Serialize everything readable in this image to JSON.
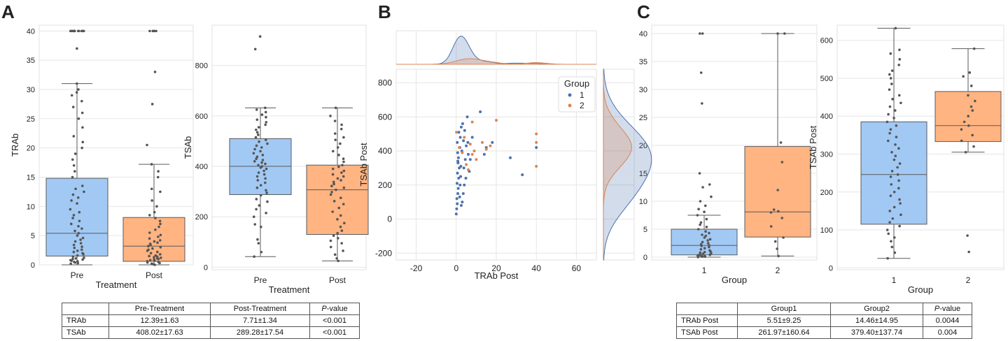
{
  "panel_letters": [
    "A",
    "B",
    "C"
  ],
  "colors": {
    "blue_box": "#a1c9f4",
    "orange_box": "#ffb482",
    "blue_dot": "#4c72b0",
    "orange_dot": "#dd8452",
    "grid": "#e6e6e6",
    "box_edge": "#5a5a5a",
    "strip_dot": "#555555"
  },
  "chart_data": [
    {
      "id": "A1",
      "type": "box",
      "xlabel": "Treatment",
      "ylabel": "TRAb",
      "categories": [
        "Pre",
        "Post"
      ],
      "ylim": [
        0,
        41
      ],
      "yticks": [
        0,
        5,
        10,
        15,
        20,
        25,
        30,
        35,
        40
      ],
      "boxes": [
        {
          "name": "Pre",
          "q1": 1.5,
          "median": 5.4,
          "q3": 14.8,
          "whisker_low": 0,
          "whisker_high": 31,
          "outliers": [
            37,
            40,
            40,
            40,
            40,
            40,
            40,
            40,
            40,
            40,
            40,
            40,
            40,
            40,
            40
          ]
        },
        {
          "name": "Post",
          "q1": 0.6,
          "median": 3.2,
          "q3": 8.1,
          "whisker_low": 0,
          "whisker_high": 17.2,
          "outliers": [
            20.5,
            27.5,
            33,
            40,
            40,
            40,
            40,
            40
          ]
        }
      ],
      "strip": [
        [
          0.2,
          0.3,
          0.4,
          0.5,
          0.6,
          0.7,
          0.8,
          0.9,
          1.0,
          1.1,
          1.2,
          1.4,
          1.6,
          1.8,
          2.0,
          2.2,
          2.4,
          2.6,
          2.9,
          3.1,
          3.4,
          3.7,
          4.0,
          4.3,
          4.6,
          5.0,
          5.4,
          5.8,
          6.2,
          6.6,
          7.0,
          7.5,
          8.0,
          8.5,
          9.0,
          9.5,
          10.5,
          11.0,
          11.5,
          12.0,
          12.5,
          13.0,
          13.5,
          15.0,
          16.0,
          17.0,
          18.0,
          19.0,
          20.0,
          21.0,
          22.0,
          23.5,
          25.0,
          26.0,
          27.0,
          28.0,
          29.0,
          29.5,
          30.0,
          31.0,
          37.0,
          40,
          40,
          40,
          40,
          40,
          40,
          40,
          40,
          40,
          40,
          40,
          40,
          40,
          40
        ],
        [
          0.0,
          0.1,
          0.2,
          0.3,
          0.4,
          0.5,
          0.6,
          0.7,
          0.8,
          0.9,
          1.0,
          1.1,
          1.2,
          1.3,
          1.4,
          1.5,
          1.6,
          1.8,
          2.0,
          2.2,
          2.4,
          2.6,
          2.8,
          3.0,
          3.2,
          3.4,
          3.6,
          3.8,
          4.0,
          4.2,
          4.5,
          4.8,
          5.1,
          5.5,
          6.0,
          6.5,
          7.0,
          7.5,
          8.0,
          8.5,
          9.0,
          10.0,
          11.0,
          12.5,
          13.0,
          15.0,
          16.0,
          17.2,
          20.5,
          27.5,
          33.0,
          40,
          40,
          40,
          40,
          40
        ]
      ]
    },
    {
      "id": "A2",
      "type": "box",
      "xlabel": "Treatment",
      "ylabel": "TSAb",
      "categories": [
        "Pre",
        "Post"
      ],
      "ylim": [
        -10,
        960
      ],
      "yticks": [
        0,
        200,
        400,
        600,
        800
      ],
      "boxes": [
        {
          "name": "Pre",
          "q1": 288,
          "median": 400,
          "q3": 510,
          "whisker_low": 42,
          "whisker_high": 632,
          "outliers": [
            865,
            915
          ]
        },
        {
          "name": "Post",
          "q1": 130,
          "median": 307,
          "q3": 405,
          "whisker_low": 25,
          "whisker_high": 632,
          "outliers": []
        }
      ],
      "strip": [
        [
          42,
          60,
          95,
          110,
          160,
          170,
          200,
          215,
          230,
          245,
          260,
          270,
          285,
          295,
          305,
          315,
          325,
          335,
          345,
          352,
          360,
          368,
          375,
          382,
          390,
          395,
          400,
          405,
          410,
          415,
          420,
          425,
          430,
          438,
          445,
          452,
          460,
          468,
          475,
          482,
          490,
          498,
          505,
          515,
          525,
          535,
          545,
          555,
          565,
          575,
          585,
          595,
          605,
          615,
          625,
          632,
          865,
          915
        ],
        [
          25,
          35,
          50,
          65,
          80,
          95,
          105,
          115,
          125,
          135,
          145,
          160,
          175,
          190,
          205,
          220,
          235,
          250,
          262,
          275,
          288,
          298,
          307,
          315,
          322,
          330,
          338,
          345,
          352,
          360,
          368,
          375,
          382,
          390,
          398,
          405,
          418,
          430,
          445,
          460,
          475,
          490,
          505,
          515,
          530,
          548,
          565,
          580,
          600,
          632
        ]
      ]
    },
    {
      "id": "B",
      "type": "scatter",
      "xlabel": "TRAb Post",
      "ylabel": "TSAb Post",
      "xlim": [
        -30,
        70
      ],
      "ylim": [
        -240,
        880
      ],
      "xticks": [
        -20,
        0,
        20,
        40,
        60
      ],
      "yticks": [
        -200,
        0,
        200,
        400,
        600,
        800
      ],
      "legend_title": "Group",
      "legend_position": "top-right",
      "series": [
        {
          "name": "1",
          "points": [
            [
              0,
              30
            ],
            [
              0.2,
              60
            ],
            [
              0.5,
              90
            ],
            [
              0.3,
              120
            ],
            [
              0.8,
              150
            ],
            [
              1,
              180
            ],
            [
              0.4,
              210
            ],
            [
              1.2,
              240
            ],
            [
              0.6,
              270
            ],
            [
              1.5,
              300
            ],
            [
              0.9,
              330
            ],
            [
              1.1,
              360
            ],
            [
              0.7,
              390
            ],
            [
              1.8,
              420
            ],
            [
              0.5,
              450
            ],
            [
              2,
              480
            ],
            [
              1.3,
              510
            ],
            [
              2.5,
              540
            ],
            [
              3,
              100
            ],
            [
              3.5,
              150
            ],
            [
              4,
              200
            ],
            [
              2.2,
              250
            ],
            [
              3.8,
              300
            ],
            [
              4.5,
              350
            ],
            [
              2.8,
              400
            ],
            [
              5,
              430
            ],
            [
              6,
              380
            ],
            [
              7,
              350
            ],
            [
              3.2,
              560
            ],
            [
              5.5,
              600
            ],
            [
              8,
              480
            ],
            [
              12,
              630
            ],
            [
              14,
              380
            ],
            [
              15,
              420
            ],
            [
              18,
              450
            ],
            [
              27,
              360
            ],
            [
              33,
              260
            ],
            [
              40,
              420
            ],
            [
              2.5,
              80
            ],
            [
              1.7,
              130
            ],
            [
              4.8,
              240
            ],
            [
              6.5,
              280
            ],
            [
              2.3,
              310
            ],
            [
              3.6,
              460
            ],
            [
              4.2,
              520
            ],
            [
              1.9,
              200
            ],
            [
              0.8,
              340
            ],
            [
              5.8,
              450
            ]
          ]
        },
        {
          "name": "2",
          "points": [
            [
              0.1,
              510
            ],
            [
              1.5,
              420
            ],
            [
              3,
              390
            ],
            [
              5,
              320
            ],
            [
              6,
              290
            ],
            [
              7,
              440
            ],
            [
              8,
              380
            ],
            [
              9,
              400
            ],
            [
              10,
              350
            ],
            [
              13,
              450
            ],
            [
              15,
              410
            ],
            [
              17,
              430
            ],
            [
              20,
              580
            ],
            [
              40,
              500
            ],
            [
              40,
              450
            ],
            [
              40,
              310
            ],
            [
              8,
              570
            ],
            [
              4,
              480
            ]
          ]
        }
      ],
      "marginal_x_note": "density of TRAb Post by group",
      "marginal_y_note": "density of TSAb Post by group"
    },
    {
      "id": "C1",
      "type": "box",
      "xlabel": "Group",
      "ylabel": "TRAb Post",
      "categories": [
        "1",
        "2"
      ],
      "ylim": [
        -0.5,
        41.5
      ],
      "yticks": [
        0,
        5,
        10,
        15,
        20,
        25,
        30,
        35,
        40
      ],
      "boxes": [
        {
          "name": "1",
          "q1": 0.4,
          "median": 2.1,
          "q3": 5.0,
          "whisker_low": 0,
          "whisker_high": 7.5,
          "outliers": [
            8.1,
            8.6,
            9.2,
            10.0,
            10.8,
            12.5,
            13.0,
            15.0,
            27.5,
            33.0,
            40,
            40
          ]
        },
        {
          "name": "2",
          "q1": 3.6,
          "median": 8.1,
          "q3": 19.8,
          "whisker_low": 0.2,
          "whisker_high": 40,
          "outliers": []
        }
      ],
      "strip": [
        [
          0,
          0.1,
          0.1,
          0.2,
          0.2,
          0.3,
          0.3,
          0.4,
          0.5,
          0.6,
          0.7,
          0.8,
          0.9,
          1.0,
          1.2,
          1.4,
          1.6,
          1.8,
          2.0,
          2.1,
          2.3,
          2.5,
          2.7,
          3.0,
          3.2,
          3.5,
          3.8,
          4.0,
          4.3,
          4.6,
          5.0,
          5.4,
          5.8,
          6.2,
          6.8,
          7.5,
          8.1,
          8.6,
          9.2,
          10.0,
          10.8,
          12.5,
          13.0,
          15.0,
          27.5,
          33.0,
          40,
          40
        ],
        [
          0.2,
          1.5,
          2.8,
          3.5,
          5.5,
          7.0,
          8.0,
          8.2,
          8.5,
          12.0,
          17.0,
          20.5,
          40,
          40
        ]
      ]
    },
    {
      "id": "C2",
      "type": "box",
      "xlabel": "Group",
      "ylabel": "TSAb Post",
      "categories": [
        "1",
        "2"
      ],
      "ylim": [
        -5,
        640
      ],
      "yticks": [
        0,
        100,
        200,
        300,
        400,
        500,
        600
      ],
      "boxes": [
        {
          "name": "1",
          "q1": 115,
          "median": 246,
          "q3": 385,
          "whisker_low": 25,
          "whisker_high": 632,
          "outliers": []
        },
        {
          "name": "2",
          "q1": 333,
          "median": 375,
          "q3": 465,
          "whisker_low": 305,
          "whisker_high": 578,
          "outliers": [
            42,
            85
          ]
        }
      ],
      "strip": [
        [
          25,
          40,
          55,
          70,
          80,
          90,
          100,
          110,
          120,
          130,
          140,
          150,
          160,
          170,
          180,
          190,
          200,
          210,
          220,
          230,
          240,
          246,
          255,
          265,
          275,
          285,
          295,
          305,
          315,
          325,
          335,
          345,
          355,
          365,
          375,
          385,
          395,
          405,
          415,
          425,
          435,
          445,
          455,
          470,
          485,
          500,
          510,
          520,
          535,
          550,
          565,
          575,
          632
        ],
        [
          42,
          85,
          305,
          320,
          335,
          350,
          365,
          375,
          385,
          400,
          415,
          425,
          440,
          455,
          480,
          505,
          515,
          578
        ]
      ]
    }
  ],
  "table_a": {
    "headers": [
      "",
      "Pre-Treatment",
      "Post-Treatment",
      "P-value"
    ],
    "pvalue_italic": "P",
    "pvalue_rest": "-value",
    "rows": [
      [
        "TRAb",
        "12.39±1.63",
        "7.71±1.34",
        "<0.001"
      ],
      [
        "TSAb",
        "408.02±17.63",
        "289.28±17.54",
        "<0.001"
      ]
    ]
  },
  "table_c": {
    "headers": [
      "",
      "Group1",
      "Group2",
      "P-value"
    ],
    "pvalue_italic": "P",
    "pvalue_rest": "-value",
    "rows": [
      [
        "TRAb Post",
        "5.51±9.25",
        "14.46±14.95",
        "0.0044"
      ],
      [
        "TSAb Post",
        "261.97±160.64",
        "379.40±137.74",
        "0.004"
      ]
    ]
  }
}
